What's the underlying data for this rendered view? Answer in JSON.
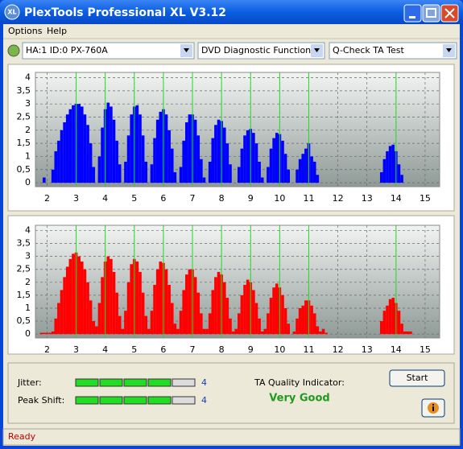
{
  "window": {
    "title": "PlexTools Professional XL V3.12",
    "icon": "XL"
  },
  "menu": [
    "Options",
    "Help"
  ],
  "toolbar": [
    "HA:1 ID:0  PX-760A",
    "DVD Diagnostic Functions",
    "Q-Check TA Test"
  ],
  "chart_data": [
    {
      "type": "bar",
      "color": "#0000ff",
      "marker_color": "#22dd22",
      "grid": true,
      "x": [
        1.8,
        1.9,
        2.0,
        2.1,
        2.2,
        2.3,
        2.4,
        2.5,
        2.6,
        2.7,
        2.8,
        2.9,
        3.0,
        3.1,
        3.2,
        3.3,
        3.4,
        3.5,
        3.6,
        3.7,
        3.8,
        3.9,
        4.0,
        4.1,
        4.2,
        4.3,
        4.4,
        4.5,
        4.6,
        4.7,
        4.8,
        4.9,
        5.0,
        5.1,
        5.2,
        5.3,
        5.4,
        5.5,
        5.6,
        5.7,
        5.8,
        5.9,
        6.0,
        6.1,
        6.2,
        6.3,
        6.4,
        6.5,
        6.6,
        6.7,
        6.8,
        6.9,
        7.0,
        7.1,
        7.2,
        7.3,
        7.4,
        7.5,
        7.6,
        7.7,
        7.8,
        7.9,
        8.0,
        8.1,
        8.2,
        8.3,
        8.4,
        8.5,
        8.6,
        8.7,
        8.8,
        8.9,
        9.0,
        9.1,
        9.2,
        9.3,
        9.4,
        9.5,
        9.6,
        9.7,
        9.8,
        9.9,
        10.0,
        10.1,
        10.2,
        10.3,
        10.4,
        10.5,
        10.6,
        10.7,
        10.8,
        10.9,
        11.0,
        11.1,
        11.2,
        11.3,
        11.4,
        11.5,
        11.6,
        11.7,
        11.8,
        11.9,
        12.0,
        12.1,
        12.2,
        12.3,
        12.4,
        12.5,
        12.6,
        12.7,
        12.8,
        12.9,
        13.0,
        13.1,
        13.2,
        13.3,
        13.4,
        13.5,
        13.6,
        13.7,
        13.8,
        13.9,
        14.0,
        14.1,
        14.2,
        14.3,
        14.4,
        14.5,
        14.6
      ],
      "values": [
        0,
        0.2,
        0,
        0,
        0.5,
        1.2,
        1.6,
        2.0,
        2.3,
        2.6,
        2.8,
        2.95,
        3.0,
        3.0,
        2.9,
        2.6,
        2.2,
        1.5,
        0.6,
        0,
        1.0,
        2.1,
        2.8,
        3.05,
        2.9,
        2.4,
        1.6,
        0.7,
        0,
        0.8,
        1.8,
        2.6,
        2.9,
        2.95,
        2.6,
        1.8,
        0.8,
        0,
        0.7,
        1.7,
        2.4,
        2.7,
        2.8,
        2.6,
        2.0,
        1.3,
        0.4,
        0,
        0.6,
        1.6,
        2.3,
        2.6,
        2.6,
        2.4,
        1.8,
        0.9,
        0.2,
        0,
        0.8,
        1.7,
        2.2,
        2.4,
        2.35,
        2.1,
        1.5,
        0.7,
        0,
        0,
        0.6,
        1.3,
        1.8,
        2.0,
        2.05,
        1.9,
        1.5,
        0.8,
        0.2,
        0,
        0.6,
        1.3,
        1.7,
        1.9,
        1.85,
        1.6,
        1.1,
        0.5,
        0,
        0,
        0.5,
        0.9,
        1.1,
        1.3,
        1.5,
        1.0,
        0.8,
        0.3,
        0,
        0,
        0,
        0,
        0,
        0,
        0,
        0,
        0,
        0,
        0,
        0,
        0,
        0,
        0,
        0,
        0,
        0,
        0,
        0,
        0,
        0.4,
        0.9,
        1.2,
        1.4,
        1.45,
        1.2,
        0.7,
        0.3,
        0,
        0,
        0,
        0
      ],
      "markers": [
        3,
        4,
        5,
        6,
        7,
        8,
        9,
        10,
        11,
        14
      ],
      "xlim": [
        1.6,
        15.5
      ],
      "ylim": [
        -0.15,
        4.2
      ],
      "xticks": [
        2,
        3,
        4,
        5,
        6,
        7,
        8,
        9,
        10,
        11,
        12,
        13,
        14,
        15
      ],
      "yticks": [
        0,
        {
          "value": 0.5,
          "label": "0,5"
        },
        1,
        {
          "value": 1.5,
          "label": "1,5"
        },
        2,
        {
          "value": 2.5,
          "label": "2,5"
        },
        3,
        {
          "value": 3.5,
          "label": "3,5"
        },
        4
      ]
    },
    {
      "type": "bar",
      "color": "#ff0000",
      "marker_color": "#22dd22",
      "grid": true,
      "x": [
        1.8,
        1.9,
        2.0,
        2.1,
        2.2,
        2.3,
        2.4,
        2.5,
        2.6,
        2.7,
        2.8,
        2.9,
        3.0,
        3.1,
        3.2,
        3.3,
        3.4,
        3.5,
        3.6,
        3.7,
        3.8,
        3.9,
        4.0,
        4.1,
        4.2,
        4.3,
        4.4,
        4.5,
        4.6,
        4.7,
        4.8,
        4.9,
        5.0,
        5.1,
        5.2,
        5.3,
        5.4,
        5.5,
        5.6,
        5.7,
        5.8,
        5.9,
        6.0,
        6.1,
        6.2,
        6.3,
        6.4,
        6.5,
        6.6,
        6.7,
        6.8,
        6.9,
        7.0,
        7.1,
        7.2,
        7.3,
        7.4,
        7.5,
        7.6,
        7.7,
        7.8,
        7.9,
        8.0,
        8.1,
        8.2,
        8.3,
        8.4,
        8.5,
        8.6,
        8.7,
        8.8,
        8.9,
        9.0,
        9.1,
        9.2,
        9.3,
        9.4,
        9.5,
        9.6,
        9.7,
        9.8,
        9.9,
        10.0,
        10.1,
        10.2,
        10.3,
        10.4,
        10.5,
        10.6,
        10.7,
        10.8,
        10.9,
        11.0,
        11.1,
        11.2,
        11.3,
        11.4,
        11.5,
        11.6,
        11.7,
        11.8,
        11.9,
        12.0,
        12.1,
        12.2,
        12.3,
        12.4,
        12.5,
        12.6,
        12.7,
        12.8,
        12.9,
        13.0,
        13.1,
        13.2,
        13.3,
        13.4,
        13.5,
        13.6,
        13.7,
        13.8,
        13.9,
        14.0,
        14.1,
        14.2,
        14.3,
        14.4,
        14.5,
        14.6
      ],
      "values": [
        0.05,
        0.05,
        0.05,
        0.05,
        0.1,
        0.6,
        1.2,
        1.7,
        2.2,
        2.6,
        2.9,
        3.1,
        3.15,
        3.0,
        2.8,
        2.5,
        2.0,
        1.3,
        0.5,
        0.3,
        1.2,
        2.2,
        2.8,
        3.0,
        2.9,
        2.4,
        1.6,
        0.7,
        0.2,
        0.9,
        2.0,
        2.7,
        2.9,
        2.8,
        2.4,
        1.6,
        0.7,
        0.2,
        0.9,
        1.9,
        2.5,
        2.8,
        2.75,
        2.5,
        1.9,
        1.2,
        0.4,
        0.2,
        0.9,
        1.7,
        2.3,
        2.5,
        2.5,
        2.2,
        1.6,
        0.8,
        0.2,
        0.2,
        0.8,
        1.7,
        2.2,
        2.4,
        2.3,
        2.0,
        1.4,
        0.6,
        0.1,
        0.2,
        0.8,
        1.5,
        1.9,
        2.1,
        2.0,
        1.7,
        1.2,
        0.6,
        0.1,
        0.2,
        0.8,
        1.4,
        1.8,
        1.95,
        1.8,
        1.5,
        1.0,
        0.4,
        0,
        0.1,
        0.6,
        1.0,
        1.1,
        1.3,
        1.3,
        1.1,
        0.8,
        0.3,
        0.1,
        0.2,
        0.05,
        0,
        0,
        0,
        0,
        0,
        0,
        0,
        0,
        0,
        0,
        0,
        0,
        0,
        0,
        0,
        0,
        0,
        0,
        0.5,
        0.9,
        1.1,
        1.35,
        1.4,
        1.2,
        0.9,
        0.4,
        0.1,
        0.1,
        0.1,
        0
      ],
      "markers": [
        3,
        4,
        5,
        6,
        7,
        8,
        9,
        10,
        11,
        14
      ],
      "xlim": [
        1.6,
        15.5
      ],
      "ylim": [
        -0.15,
        4.2
      ],
      "xticks": [
        2,
        3,
        4,
        5,
        6,
        7,
        8,
        9,
        10,
        11,
        12,
        13,
        14,
        15
      ],
      "yticks": [
        0,
        {
          "value": 0.5,
          "label": "0,5"
        },
        1,
        {
          "value": 1.5,
          "label": "1,5"
        },
        2,
        {
          "value": 2.5,
          "label": "2,5"
        },
        3,
        {
          "value": 3.5,
          "label": "3,5"
        },
        4
      ]
    }
  ],
  "results": {
    "jitter": {
      "label": "Jitter:",
      "value": 4
    },
    "peak_shift": {
      "label": "Peak Shift:",
      "value": 4
    },
    "ta_label": "TA Quality Indicator:",
    "ta_value": "Very Good",
    "start": "Start"
  },
  "status": "Ready"
}
